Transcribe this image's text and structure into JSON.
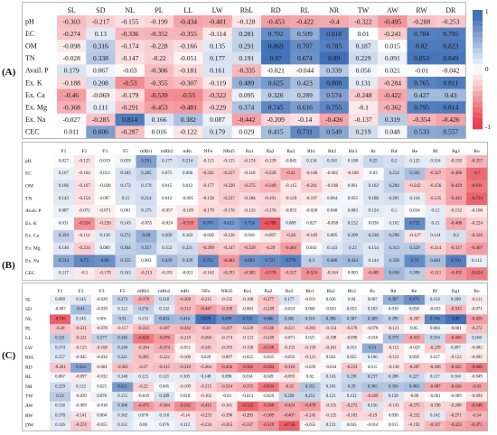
{
  "chart_data": [
    {
      "type": "heatmap",
      "panel_label": "(A)",
      "x": [
        "SL",
        "SD",
        "NL",
        "PL",
        "LL",
        "LW",
        "RbL",
        "RD",
        "RL",
        "NR",
        "TW",
        "AW",
        "RW",
        "DR"
      ],
      "y": [
        "pH",
        "EC",
        "OM",
        "TN",
        "Avail. P",
        "Ex. K",
        "Ex. Ca",
        "Ex. Mg",
        "Ex. Na",
        "CEC"
      ],
      "values": [
        [
          "-0.303",
          "-0.217",
          "-0.155",
          "-0.199",
          "-0.434",
          "-0.401",
          "-0.128",
          "-0.453",
          "-0.422",
          "-0.4",
          "-0.322",
          "-0.495",
          "-0.288",
          "-0.253"
        ],
        [
          "-0.274",
          "0.13",
          "-0.336",
          "-0.352",
          "-0.355",
          "-0.114",
          "0.281",
          "0.702",
          "0.509",
          "0.818",
          "0.01",
          "-0.241",
          "0.784",
          "0.795"
        ],
        [
          "-0.098",
          "0.316",
          "-0.174",
          "-0.228",
          "-0.166",
          "0.135",
          "0.291",
          "0.869",
          "0.707",
          "0.785",
          "0.187",
          "0.015",
          "0.82",
          "0.823"
        ],
        [
          "-0.028",
          "0.338",
          "-0.147",
          "-0.22",
          "-0.051",
          "0.177",
          "0.191",
          "0.87",
          "0.674",
          "0.89",
          "0.229",
          "0.091",
          "0.853",
          "0.849"
        ],
        [
          "0.179",
          "0.067",
          "-0.03",
          "-0.306",
          "-0.181",
          "0.161",
          "-0.335",
          "-0.021",
          "-0.044",
          "0.339",
          "0.056",
          "0.021",
          "-0.01",
          "-0.042"
        ],
        [
          "-0.188",
          "0.208",
          "-0.53",
          "-0.355",
          "-0.307",
          "-0.119",
          "0.489",
          "0.625",
          "0.423",
          "0.808",
          "0.131",
          "-0.284",
          "0.765",
          "0.811"
        ],
        [
          "-0.46",
          "-0.069",
          "-0.179",
          "-0.539",
          "-0.55",
          "-0.322",
          "0.095",
          "0.326",
          "0.289",
          "0.574",
          "-0.248",
          "-0.422",
          "0.427",
          "0.43"
        ],
        [
          "-0.368",
          "0.111",
          "-0.291",
          "-0.453",
          "-0.481",
          "-0.229",
          "0.374",
          "0.745",
          "0.616",
          "0.755",
          "-0.1",
          "-0.362",
          "0.795",
          "0.814"
        ],
        [
          "-0.027",
          "-0.285",
          "0.814",
          "0.166",
          "0.382",
          "0.087",
          "-0.442",
          "-0.209",
          "-0.14",
          "-0.426",
          "-0.137",
          "0.319",
          "-0.354",
          "-0.426"
        ],
        [
          "0.011",
          "0.606",
          "-0.287",
          "0.016",
          "-0.122",
          "0.179",
          "0.029",
          "0.415",
          "0.731",
          "0.549",
          "0.219",
          "0.048",
          "0.533",
          "0.557"
        ]
      ]
    },
    {
      "type": "heatmap",
      "panel_label": "(B)",
      "x": [
        "F1",
        "F2",
        "F3",
        "F5",
        "mRb1",
        "mRb2",
        "mRc",
        "NFe",
        "NRd5",
        "Ra1",
        "Ra2",
        "Ra3",
        "Rb1",
        "Rb2",
        "Rb3",
        "Rc",
        "Rd",
        "Re",
        "Rf",
        "Rg1",
        "Ro"
      ],
      "y": [
        "pH",
        "EC",
        "OM",
        "TN",
        "Avail. P",
        "Ex. K",
        "Ex. Ca",
        "Ex. Mg",
        "Ex. Na",
        "CEC"
      ],
      "values": [
        [
          "0.027",
          "-0.125",
          "0.019",
          "0.059",
          "0.591",
          "0.177",
          "0.214",
          "-0.115",
          "-0.125",
          "-0.174",
          "-0.139",
          "-0.045",
          "0.134",
          "0.161",
          "0.108",
          "0.25",
          "0.2",
          "0.125",
          "0.116",
          "-0.192",
          "-0.357"
        ],
        [
          "0.107",
          "-0.104",
          "0.012",
          "0.183",
          "0.285",
          "0.075",
          "0.066",
          "-0.245",
          "-0.257",
          "-0.118",
          "-0.228",
          "-0.41",
          "-0.148",
          "-0.062",
          "-0.106",
          "0.03",
          "0.254",
          "0.392",
          "-0.327",
          "-0.406",
          "-0.7"
        ],
        [
          "0.166",
          "-0.167",
          "-0.028",
          "0.172",
          "0.179",
          "0.015",
          "0.012",
          "-0.177",
          "-0.228",
          "-0.275",
          "-0.349",
          "-0.115",
          "-0.241",
          "-0.108",
          "0.061",
          "0.162",
          "0.294",
          "-0.242",
          "-0.256",
          "-0.429",
          "-0.631"
        ],
        [
          "0.143",
          "-0.154",
          "0.007",
          "0.15",
          "0.214",
          "0.012",
          "-0.005",
          "-0.158",
          "-0.237",
          "-0.184",
          "-0.191",
          "-0.129",
          "-0.107",
          "0.064",
          "0.055",
          "0.168",
          "0.201",
          "0.118",
          "-0.235",
          "-0.443",
          "-0.724"
        ],
        [
          "0.087",
          "-0.072",
          "-0.071",
          "0.001",
          "0.175",
          "-0.057",
          "-0.109",
          "-0.179",
          "-0.176",
          "-0.133",
          "-0.176",
          "-0.055",
          "-0.028",
          "0.048",
          "0.083",
          "0.124",
          "0.1",
          "0.034",
          "0.12",
          "-0.152",
          "-0.106"
        ],
        [
          "0.031",
          "-0.524",
          "-0.226",
          "0.143",
          "-0.055",
          "-0.024",
          "-0.559",
          "0.707",
          "0.622",
          "0.724",
          "-0.788",
          "0.089",
          "0.027",
          "-0.058",
          "0.152",
          "0.036",
          "0.102",
          "0.721",
          "0.15",
          "-0.408",
          "-0.224"
        ],
        [
          "0.294",
          "-0.114",
          "0.136",
          "0.272",
          "0.49",
          "0.209",
          "0.103",
          "-0.028",
          "-0.126",
          "0.016",
          "-0.097",
          "-0.26",
          "-0.149",
          "0.095",
          "0.209",
          "0.238",
          "0.296",
          "-0.127",
          "0.134",
          "0.2",
          "-0.326"
        ],
        [
          "0.146",
          "-0.234",
          "0.089",
          "0.304",
          "0.357",
          "0.152",
          "0.221",
          "-0.299",
          "-0.247",
          "-0.329",
          "-0.29",
          "-0.461",
          "0.043",
          "0.143",
          "0.23",
          "0.154",
          "0.313",
          "0.329",
          "-0.214",
          "-0.337",
          "-0.467"
        ],
        [
          "0.534",
          "0.73",
          "0.69",
          "0.355",
          "0.003",
          "0.439",
          "0.329",
          "0.751",
          "-0.483",
          "0.683",
          "0.721",
          "0.776",
          "0.3",
          "0.406",
          "0.434",
          "0.144",
          "0.358",
          "0.72",
          "0.401",
          "0.781",
          "0.112"
        ],
        [
          "0.117",
          "-0.1",
          "-0.178",
          "0.163",
          "-0.213",
          "-0.101",
          "-0.021",
          "-0.142",
          "-0.293",
          "-0.385",
          "-0.578",
          "-0.327",
          "-0.524",
          "-0.164",
          "0.003",
          "-0.405",
          "0.436",
          "0.306",
          "-0.311",
          "-0.492",
          "-0.624"
        ]
      ]
    },
    {
      "type": "heatmap",
      "panel_label": "(C)",
      "x": [
        "F1",
        "F2",
        "F3",
        "F5",
        "mRb1",
        "mRb2",
        "mRc",
        "NFe",
        "NRd5",
        "Ra1",
        "Ra2",
        "Ra3",
        "Rb1",
        "Rb2",
        "Rb3",
        "Rc",
        "Rd",
        "Re",
        "Rf",
        "Rg1",
        "Ro"
      ],
      "y": [
        "SL",
        "SD",
        "NL",
        "PL",
        "LL",
        "LW",
        "RbL",
        "RD",
        "RL",
        "NR",
        "TW",
        "AW",
        "RW",
        "DW"
      ],
      "values": [
        [
          "0.099",
          "0.145",
          "-0.029",
          "0.273",
          "-0.378",
          "0.216",
          "-0.309",
          "-0.215",
          "-0.135",
          "-0.108",
          "-0.277",
          "0.177",
          "-0.031",
          "0.026",
          "0.04",
          "0.067",
          "0.497",
          "0.676",
          "0.154",
          "0.189",
          "-0.111"
        ],
        [
          "-0.007",
          "0.41",
          "-0.039",
          "0.122",
          "0.276",
          "0.132",
          "-0.312",
          "-0.447",
          "-0.339",
          "-0.063",
          "-0.249",
          "-0.024",
          "0.008",
          "-0.001",
          "0.053",
          "0.103",
          "0.018",
          "0.058",
          "-0.033",
          "-0.333",
          "-0.071"
        ],
        [
          "-0.745",
          "0.145",
          "0.001",
          "0.31",
          "0.133",
          "0.453",
          "0.416",
          "0.876",
          "0.689",
          "0.723",
          "0.606",
          "0.365",
          "0.316",
          "0.394",
          "0.307",
          "0.369",
          "0.299",
          "-0.207",
          "0.746",
          "0.88",
          "-0.456"
        ],
        [
          "-0.28",
          "-0.221",
          "-0.078",
          "-0.157",
          "-0.313",
          "-0.307",
          "-0.342",
          "-0.28",
          "-0.297",
          "-0.229",
          "-0.346",
          "-0.221",
          "-0.201",
          "-0.154",
          "-0.178",
          "-0.078",
          "-0.121",
          "0.05",
          "0.064",
          "-0.081",
          "-0.272"
        ],
        [
          "0.321",
          "-0.221",
          "0.277",
          "0.345",
          "-0.628",
          "-0.476",
          "-0.216",
          "-0.264",
          "-0.174",
          "-0.123",
          "-0.249",
          "-0.071",
          "0.025",
          "-0.108",
          "-0.098",
          "-0.016",
          "0.379",
          "-0.415",
          "0.254",
          "-0.466",
          "0.166"
        ],
        [
          "0.174",
          "-0.123",
          "-0.168",
          "0.246",
          "-0.284",
          "-0.374",
          "-0.051",
          "-0.241",
          "-0.193",
          "-0.158",
          "-0.538",
          "-0.155",
          "-0.159",
          "-0.161",
          "0.053",
          "0.51",
          "-0.112",
          "-0.029",
          "-0.229",
          "0.097",
          "-0.082"
        ],
        [
          "0.157",
          "-0.045",
          "-0.034",
          "0.221",
          "-0.285",
          "-0.222",
          "-0.109",
          "0.028",
          "-0.097",
          "-0.025",
          "-0.035",
          "-0.056",
          "-0.121",
          "0.043",
          "0.055",
          "0.106",
          "-0.121",
          "0.058",
          "0.017",
          "-0.123",
          "-0.092"
        ],
        [
          "-0.261",
          "0.563",
          "-0.081",
          "-0.301",
          "-0.27",
          "-0.315",
          "-0.318",
          "-0.264",
          "-0.456",
          "-0.582",
          "-0.584",
          "-0.318",
          "-0.039",
          "-0.034",
          "-0.253",
          "0.015",
          "-0.138",
          "-0.287",
          "-0.266",
          "-0.435",
          "-0.608"
        ],
        [
          "0.067",
          "-0.097",
          "-0.032",
          "0.146",
          "0.125",
          "0.121",
          "0.105",
          "0.148",
          "0.096",
          "0.034",
          "0.049",
          "-0.093",
          "0.02",
          "0.143",
          "0.238",
          "0.237",
          "0.208",
          "0.227",
          "0.127",
          "0.104",
          "-0.049"
        ],
        [
          "0.219",
          "0.122",
          "0.025",
          "0.621",
          "-0.22",
          "0.045",
          "-0.109",
          "-0.215",
          "-0.324",
          "-0.372",
          "-0.634",
          "-0.35",
          "0.355",
          "0.165",
          "0.29",
          "0.365",
          "0.356",
          "0.403",
          "-0.407",
          "-0.426",
          "-0.43"
        ],
        [
          "0.33",
          "-0.039",
          "0.078",
          "0.155",
          "-0.018",
          "0.189",
          "0.018",
          "-0.103",
          "-0.03",
          "-0.013",
          "-0.029",
          "0.258",
          "0.251",
          "0.121",
          "0.132",
          "-0.269",
          "0.158",
          "-0.09",
          "-0.001",
          "-0.009",
          "-0.094"
        ],
        [
          "0.136",
          "-0.009",
          "-0.018",
          "0.306",
          "-0.475",
          "-0.364",
          "-0.542",
          "-0.415",
          "-0.161",
          "-0.722",
          "-0.568",
          "-0.424",
          "-0.478",
          "-0.155",
          "-0.272",
          "0.156",
          "-0.143",
          "-0.275",
          "-0.196",
          "-0.208",
          "-0.548"
        ],
        [
          "0.178",
          "-0.141",
          "0.064",
          "0.162",
          "0.076",
          "0.118",
          "-0.14",
          "-0.233",
          "-0.196",
          "-0.283",
          "-0.389",
          "-0.407",
          "-0.245",
          "-0.125",
          "-0.183",
          "-0.19",
          "0.038",
          "-0.232",
          "0.142",
          "-0.271",
          "-0.34"
        ],
        [
          "0.126",
          "-0.274",
          "-0.055",
          "0.151",
          "0.06",
          "0.076",
          "0.112",
          "-0.234",
          "-0.265",
          "-0.337",
          "-0.519",
          "-0.736",
          "-0.055",
          "0.121",
          "0.043",
          "-0.014",
          "0.015",
          "-0.192",
          "-0.337",
          "-0.423",
          "-0.471"
        ]
      ]
    }
  ],
  "legend": {
    "ticks": [
      "1",
      "0",
      "-1"
    ],
    "colors": {
      "positive": "#3f6fb6",
      "neutral": "#ffffff",
      "negative": "#e8414b"
    }
  }
}
